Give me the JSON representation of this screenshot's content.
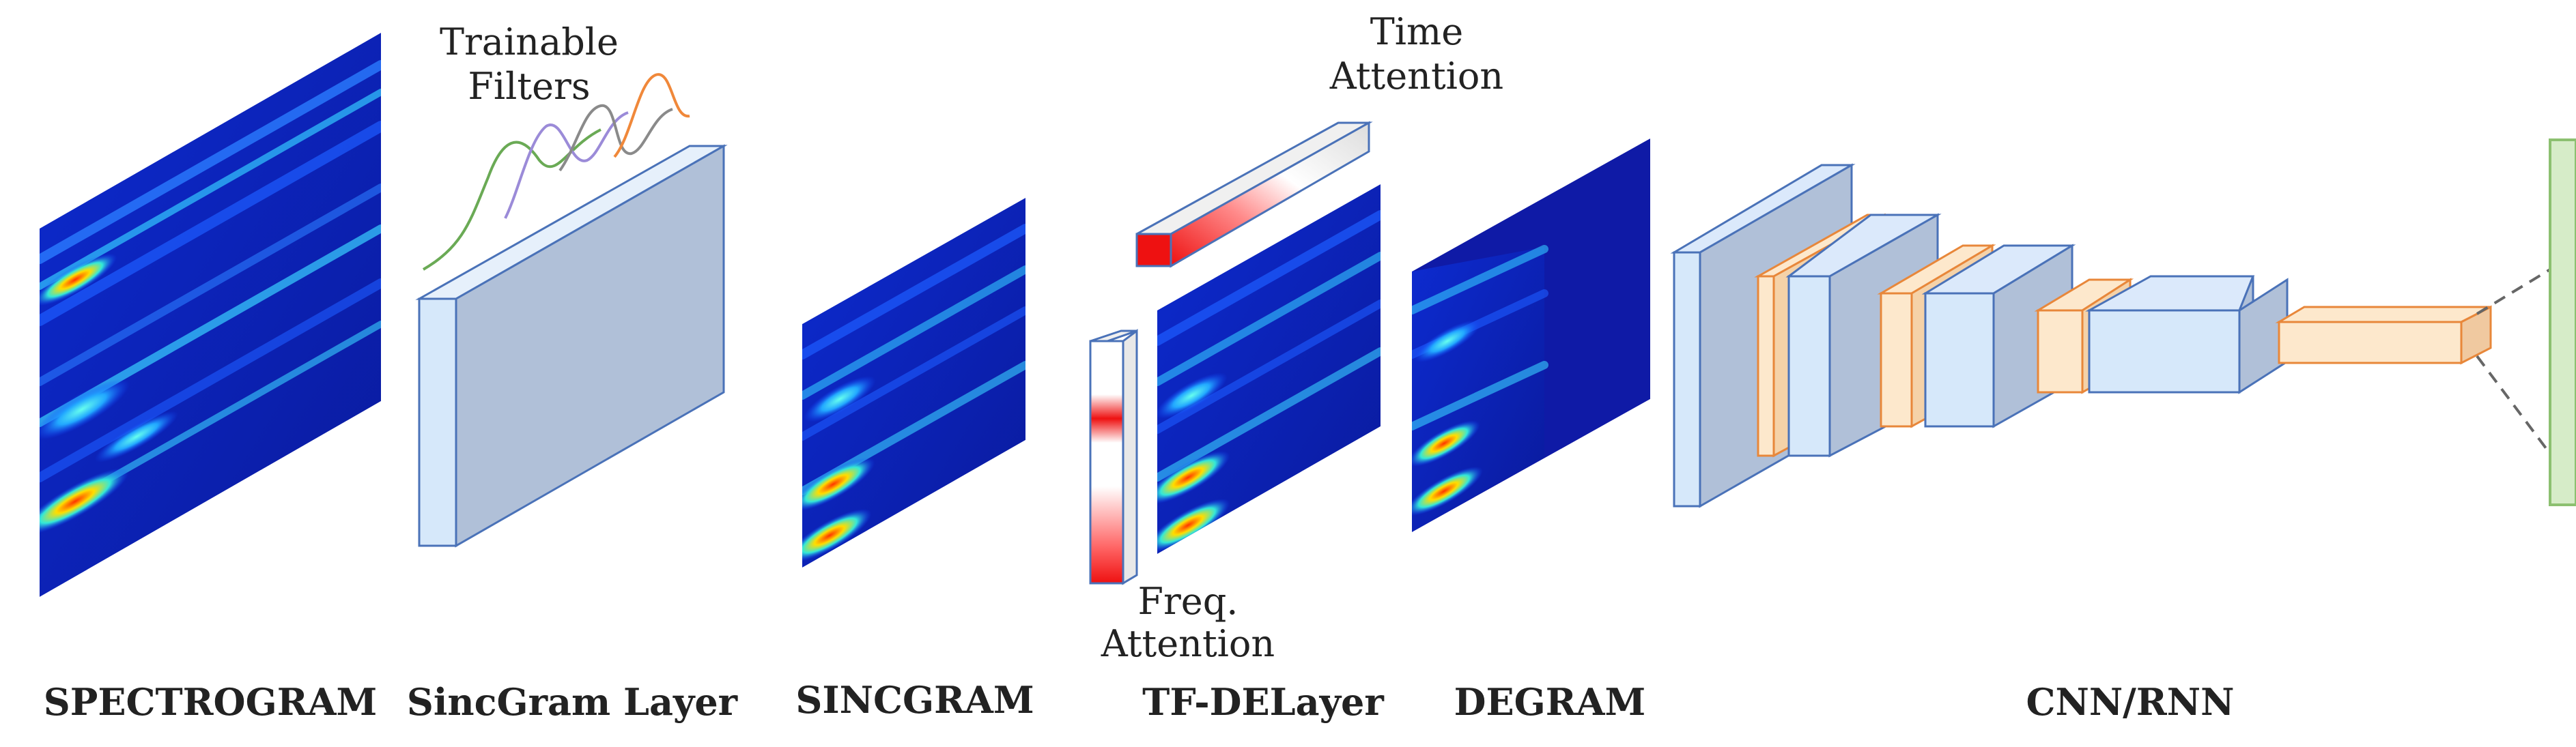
{
  "stages": {
    "spectrogram": "SPECTROGRAM",
    "sincgram_layer": "SincGram Layer",
    "sincgram": "SINCGRAM",
    "tf_delayer": "TF-DELayer",
    "degram": "DEGRAM",
    "cnn_rnn": "CNN/RNN"
  },
  "annotations": {
    "trainable_filters": [
      "Trainable",
      "Filters"
    ],
    "time_attention": [
      "Time",
      "Attention"
    ],
    "freq_attention": [
      "Freq.",
      "Attention"
    ]
  },
  "colors": {
    "heatmap_bg": "#0a1aa8",
    "block_front": "#d6e8fa",
    "block_side": "#b0c0d8",
    "block_edge": "#4a72b8",
    "orange_front": "#fde8cc",
    "orange_edge": "#e8873a",
    "attention_red": "#ee1111",
    "output_green": "#d6ecc8",
    "output_edge": "#8cc070"
  },
  "filter_curve_colors": [
    "#6aaa55",
    "#9b8bd8",
    "#8a8a8a",
    "#f0883a"
  ]
}
